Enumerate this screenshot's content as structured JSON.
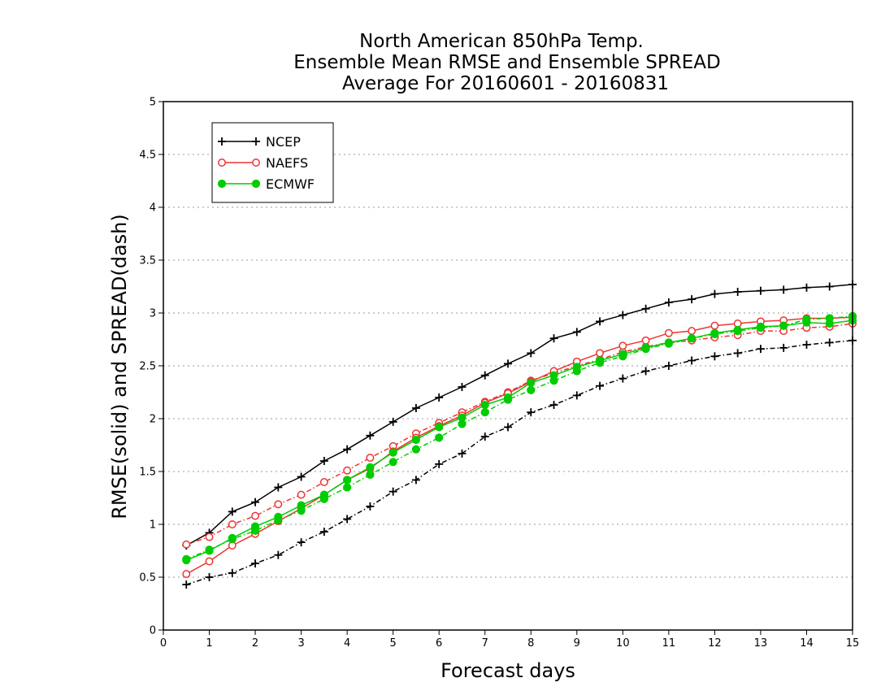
{
  "chart_data": {
    "type": "line",
    "title_lines": [
      "North American 850hPa Temp.",
      "Ensemble Mean RMSE and Ensemble SPREAD",
      "Average For 20160601 - 20160831"
    ],
    "xlabel": "Forecast days",
    "ylabel": "RMSE(solid) and SPREAD(dash)",
    "xlim": [
      0,
      15
    ],
    "ylim": [
      0,
      5
    ],
    "x_ticks": [
      "0",
      "1",
      "2",
      "3",
      "4",
      "5",
      "6",
      "7",
      "8",
      "9",
      "10",
      "11",
      "12",
      "13",
      "14",
      "15"
    ],
    "y_ticks": [
      "0",
      "0.5",
      "1",
      "1.5",
      "2",
      "2.5",
      "3",
      "3.5",
      "4",
      "4.5",
      "5"
    ],
    "grid": "horizontal dotted",
    "legend_position": "top-left",
    "x": [
      0.5,
      1,
      1.5,
      2,
      2.5,
      3,
      3.5,
      4,
      4.5,
      5,
      5.5,
      6,
      6.5,
      7,
      7.5,
      8,
      8.5,
      9,
      9.5,
      10,
      10.5,
      11,
      11.5,
      12,
      12.5,
      13,
      13.5,
      14,
      14.5,
      15
    ],
    "series": [
      {
        "name": "NCEP",
        "color": "#000000",
        "marker": "plus",
        "rmse": [
          0.8,
          0.92,
          1.12,
          1.21,
          1.35,
          1.45,
          1.6,
          1.71,
          1.84,
          1.97,
          2.1,
          2.2,
          2.3,
          2.41,
          2.52,
          2.62,
          2.76,
          2.82,
          2.92,
          2.98,
          3.04,
          3.1,
          3.13,
          3.18,
          3.2,
          3.21,
          3.22,
          3.24,
          3.25,
          3.27
        ],
        "spread": [
          0.43,
          0.5,
          0.54,
          0.63,
          0.71,
          0.83,
          0.93,
          1.05,
          1.17,
          1.31,
          1.42,
          1.57,
          1.67,
          1.83,
          1.92,
          2.06,
          2.13,
          2.22,
          2.31,
          2.38,
          2.45,
          2.5,
          2.55,
          2.59,
          2.62,
          2.66,
          2.67,
          2.7,
          2.72,
          2.74
        ]
      },
      {
        "name": "NAEFS",
        "color": "#ee3333",
        "marker": "open-circle",
        "rmse": [
          0.53,
          0.65,
          0.8,
          0.91,
          1.03,
          1.15,
          1.28,
          1.42,
          1.53,
          1.69,
          1.82,
          1.93,
          2.03,
          2.15,
          2.24,
          2.35,
          2.45,
          2.54,
          2.62,
          2.69,
          2.74,
          2.81,
          2.83,
          2.88,
          2.9,
          2.92,
          2.93,
          2.95,
          2.95,
          2.96
        ],
        "spread": [
          0.81,
          0.88,
          1.0,
          1.08,
          1.19,
          1.28,
          1.4,
          1.51,
          1.63,
          1.74,
          1.86,
          1.96,
          2.06,
          2.16,
          2.25,
          2.36,
          2.43,
          2.5,
          2.56,
          2.63,
          2.68,
          2.72,
          2.74,
          2.77,
          2.79,
          2.83,
          2.83,
          2.86,
          2.87,
          2.9
        ]
      },
      {
        "name": "ECMWF",
        "color": "#00cc00",
        "marker": "filled-circle",
        "rmse": [
          0.66,
          0.75,
          0.87,
          0.98,
          1.07,
          1.18,
          1.28,
          1.42,
          1.54,
          1.68,
          1.8,
          1.92,
          2.01,
          2.13,
          2.2,
          2.34,
          2.41,
          2.49,
          2.55,
          2.61,
          2.67,
          2.72,
          2.76,
          2.81,
          2.84,
          2.87,
          2.88,
          2.91,
          2.9,
          2.93
        ],
        "spread": [
          0.67,
          0.76,
          0.86,
          0.94,
          1.04,
          1.13,
          1.24,
          1.35,
          1.47,
          1.59,
          1.71,
          1.82,
          1.95,
          2.06,
          2.18,
          2.27,
          2.36,
          2.45,
          2.53,
          2.59,
          2.66,
          2.71,
          2.76,
          2.8,
          2.83,
          2.86,
          2.88,
          2.94,
          2.95,
          2.97
        ]
      }
    ]
  }
}
